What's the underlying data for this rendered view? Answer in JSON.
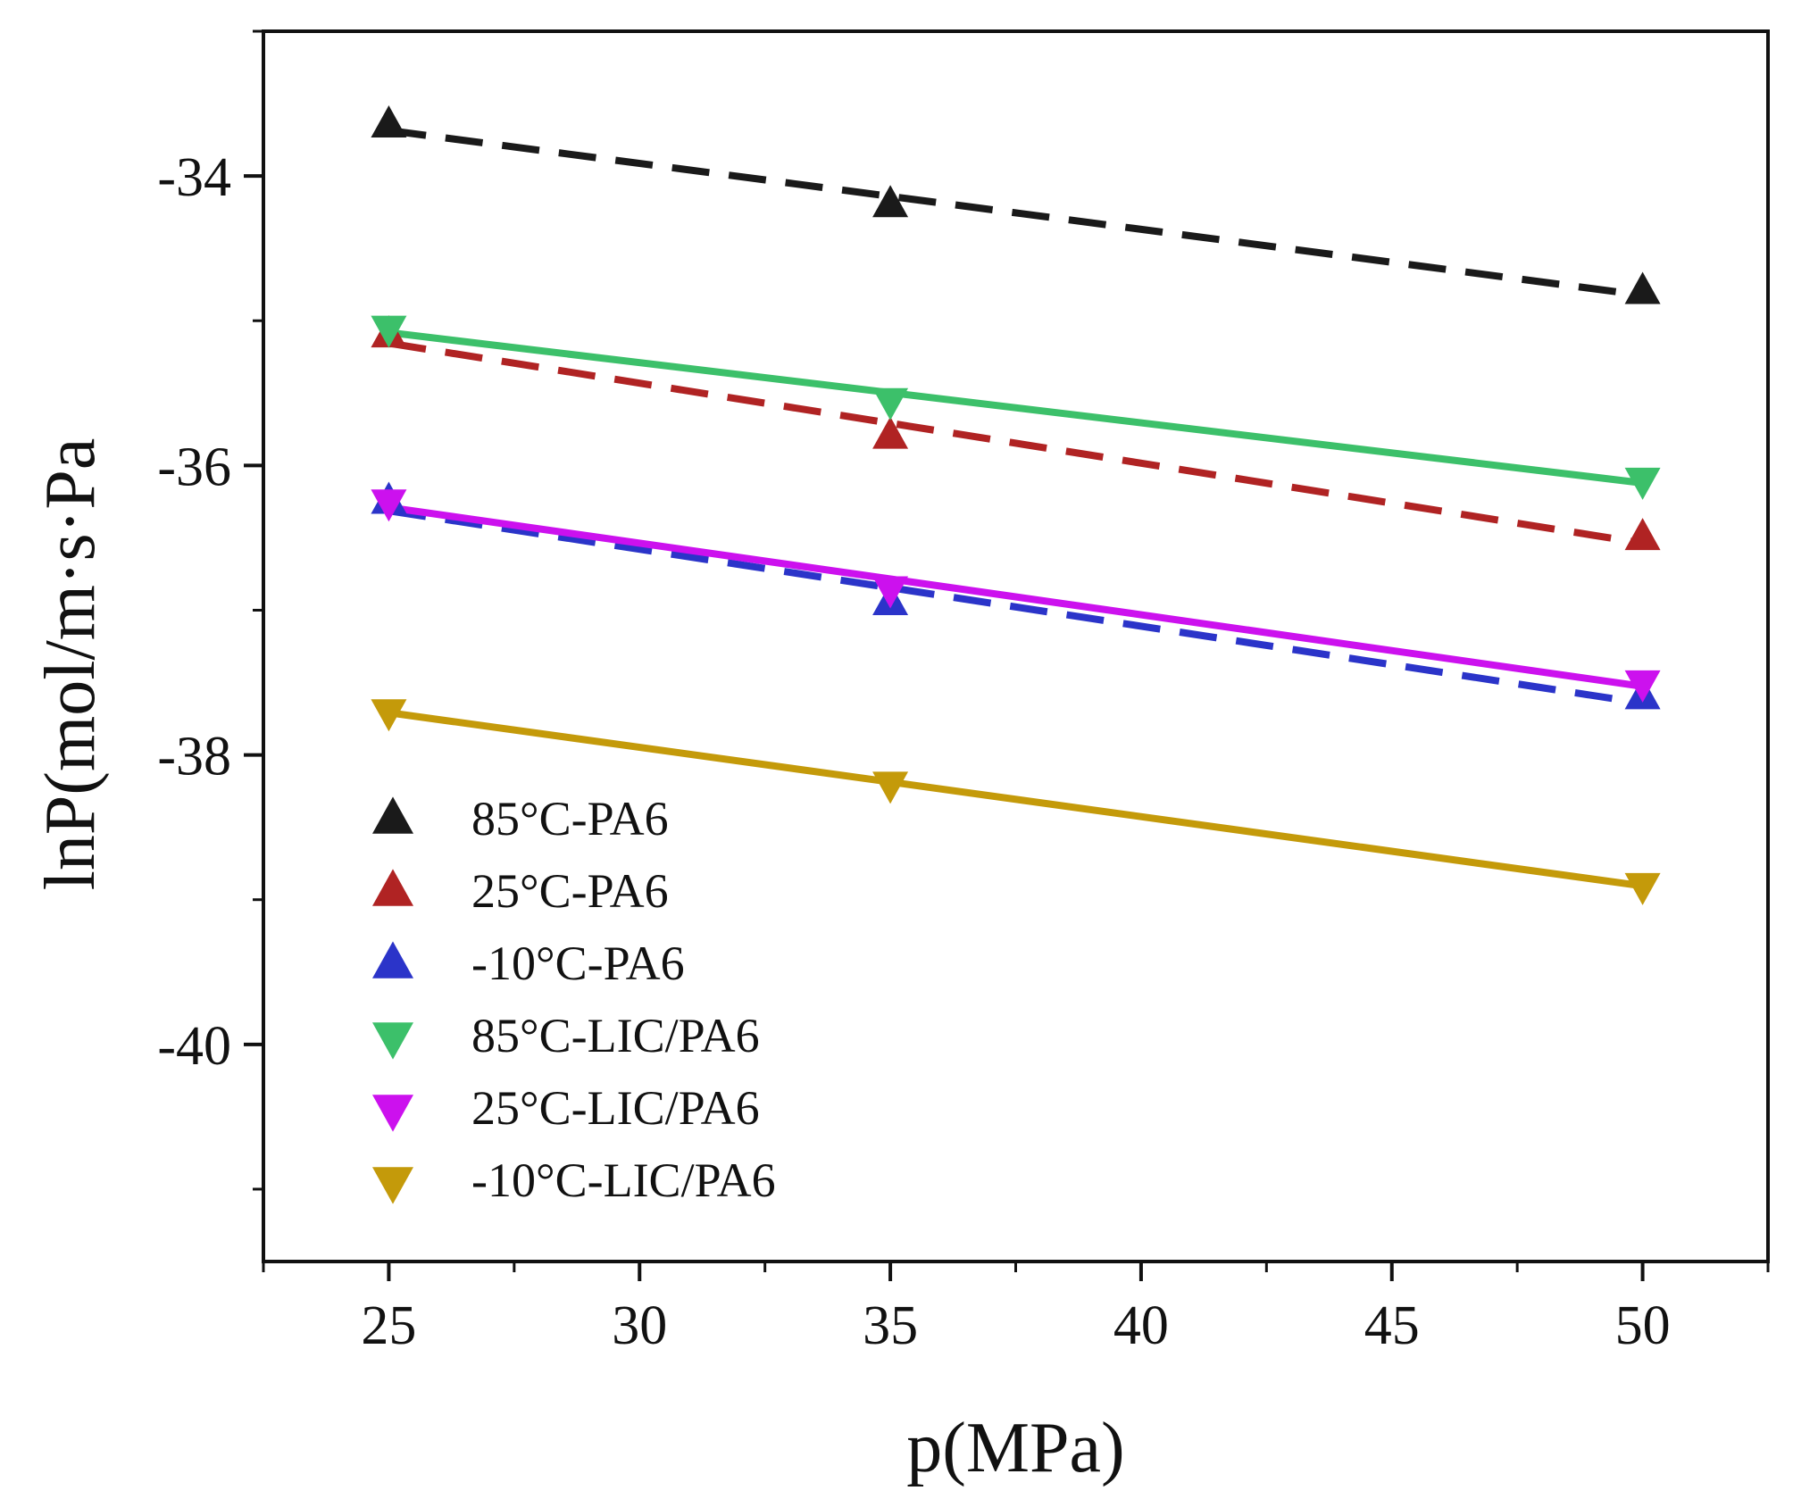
{
  "chart_data": {
    "type": "scatter",
    "title": "",
    "xlabel": "p(MPa)",
    "ylabel": "lnP(mol/m·s·Pa",
    "xlim": [
      22.5,
      52.5
    ],
    "ylim": [
      -41.5,
      -33
    ],
    "x_ticks": [
      25,
      30,
      35,
      40,
      45,
      50
    ],
    "y_ticks": [
      -34,
      -36,
      -38,
      -40
    ],
    "x_tick_labels": [
      "25",
      "30",
      "35",
      "40",
      "45",
      "50"
    ],
    "y_tick_labels": [
      "-34",
      "-36",
      "-38",
      "-40"
    ],
    "grid": false,
    "legend_position": "bottom-left",
    "series": [
      {
        "name": "85°C-PA6",
        "color": "#1a1a1a",
        "marker": "triangle-up",
        "line": "dashed",
        "x": [
          25,
          35,
          50
        ],
        "y": [
          -33.65,
          -34.2,
          -34.8
        ]
      },
      {
        "name": "25°C-PA6",
        "color": "#b02323",
        "marker": "triangle-up",
        "line": "dashed",
        "x": [
          25,
          35,
          50
        ],
        "y": [
          -35.1,
          -35.8,
          -36.5
        ]
      },
      {
        "name": "-10°C-PA6",
        "color": "#2b34c9",
        "marker": "triangle-up",
        "line": "dashed",
        "x": [
          25,
          35,
          50
        ],
        "y": [
          -36.25,
          -36.95,
          -37.6
        ]
      },
      {
        "name": "85°C-LIC/PA6",
        "color": "#3cc06a",
        "marker": "triangle-down",
        "line": "solid",
        "x": [
          25,
          35,
          50
        ],
        "y": [
          -35.05,
          -35.55,
          -36.1
        ]
      },
      {
        "name": "25°C-LIC/PA6",
        "color": "#cc11ee",
        "marker": "triangle-down",
        "line": "solid",
        "x": [
          25,
          35,
          50
        ],
        "y": [
          -36.25,
          -36.85,
          -37.5
        ]
      },
      {
        "name": "-10°C-LIC/PA6",
        "color": "#c49a0a",
        "marker": "triangle-down",
        "line": "solid",
        "x": [
          25,
          35,
          50
        ],
        "y": [
          -37.7,
          -38.2,
          -38.9
        ]
      }
    ]
  }
}
